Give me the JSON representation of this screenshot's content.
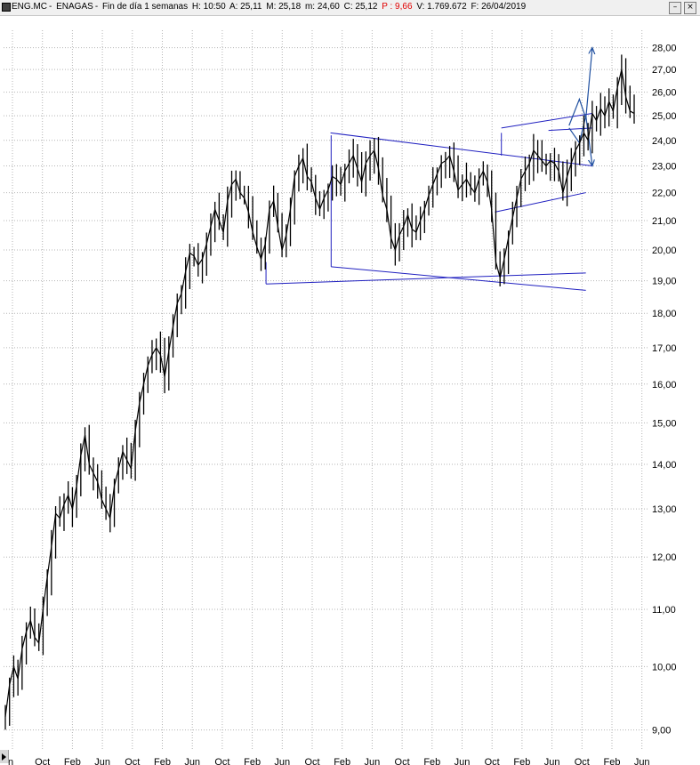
{
  "header": {
    "symbol": "ENG.MC",
    "name": "ENAGAS",
    "period": "Fin de día 1 semanas",
    "hour": "H: 10:50",
    "open": "A: 25,11",
    "high": "M: 25,18",
    "low": "m: 24,60",
    "close": "C: 25,12",
    "pct": "P : 9,66",
    "volume": "V: 1.769.672",
    "date": "F: 26/04/2019",
    "colors": {
      "pct": "#e00000"
    }
  },
  "window_buttons": {
    "minimize": "–",
    "close": "×"
  },
  "chart_data": {
    "type": "candlestick-line",
    "yscale": "log",
    "ylim": [
      8.85,
      28.4
    ],
    "yticks": [
      "28,00",
      "27,00",
      "26,00",
      "25,00",
      "24,00",
      "23,00",
      "22,00",
      "21,00",
      "20,00",
      "19,00",
      "18,00",
      "17,00",
      "16,00",
      "15,00",
      "14,00",
      "13,00",
      "12,00",
      "11,00",
      "10,00",
      "9,00"
    ],
    "ytick_values": [
      28,
      27,
      26,
      25,
      24,
      23,
      22,
      21,
      20,
      19,
      18,
      17,
      16,
      15,
      14,
      13,
      12,
      11,
      10,
      9
    ],
    "xticks": [
      "n",
      "Oct",
      "Feb",
      "Jun",
      "Oct",
      "Feb",
      "Jun",
      "Oct",
      "Feb",
      "Jun",
      "Oct",
      "Feb",
      "Jun",
      "Oct",
      "Feb",
      "Jun",
      "Oct",
      "Feb",
      "Jun",
      "Oct",
      "Feb",
      "Jun"
    ],
    "grid": true,
    "series": [
      {
        "values": [
          9.2,
          9.7,
          10.0,
          9.8,
          10.3,
          10.6,
          10.8,
          10.5,
          10.4,
          11.0,
          11.6,
          12.2,
          12.9,
          12.8,
          13.1,
          13.3,
          13.0,
          13.5,
          14.2,
          14.7,
          14.0,
          13.8,
          13.6,
          13.2,
          13.0,
          12.8,
          13.5,
          13.9,
          14.3,
          14.1,
          13.9,
          14.8,
          15.5,
          16.0,
          16.5,
          16.8,
          17.0,
          16.8,
          16.2,
          16.9,
          17.6,
          18.3,
          18.6,
          19.3,
          19.9,
          19.8,
          19.5,
          19.7,
          20.2,
          20.8,
          21.4,
          21.0,
          20.6,
          21.7,
          22.3,
          22.5,
          22.0,
          21.8,
          21.3,
          20.6,
          20.1,
          19.7,
          20.2,
          21.4,
          21.7,
          20.8,
          20.0,
          20.5,
          21.4,
          22.6,
          23.0,
          23.3,
          22.6,
          22.4,
          21.8,
          21.4,
          21.8,
          22.1,
          22.6,
          22.5,
          22.3,
          22.8,
          23.1,
          23.4,
          22.9,
          22.4,
          23.1,
          23.4,
          23.6,
          22.9,
          21.9,
          21.4,
          20.4,
          20.0,
          20.5,
          20.8,
          21.2,
          20.7,
          20.6,
          21.0,
          21.4,
          21.9,
          22.3,
          22.7,
          23.1,
          23.2,
          23.4,
          22.8,
          22.1,
          22.3,
          22.5,
          22.2,
          22.0,
          22.5,
          22.8,
          22.4,
          21.4,
          19.6,
          19.1,
          19.7,
          20.4,
          21.1,
          21.8,
          22.5,
          22.8,
          23.1,
          23.6,
          23.4,
          23.2,
          23.0,
          23.2,
          23.1,
          22.8,
          22.0,
          22.6,
          23.1,
          23.6,
          23.9,
          24.3,
          24.0,
          25.1,
          24.8,
          25.3,
          25.0,
          25.6,
          25.2,
          26.2,
          27.0,
          25.8,
          25.2,
          25.1
        ]
      }
    ],
    "annotations": [
      {
        "type": "trendline",
        "from": [
          0.507,
          24.3
        ],
        "to": [
          0.913,
          23.0
        ]
      },
      {
        "type": "trendline",
        "from": [
          0.508,
          19.45
        ],
        "to": [
          0.903,
          18.7
        ]
      },
      {
        "type": "trendline",
        "from": [
          0.407,
          18.9
        ],
        "to": [
          0.903,
          19.25
        ]
      },
      {
        "type": "trendline",
        "from": [
          0.508,
          24.2
        ],
        "to": [
          0.508,
          19.45
        ]
      },
      {
        "type": "trendline",
        "from": [
          0.407,
          18.9
        ],
        "to": [
          0.407,
          19.6
        ]
      },
      {
        "type": "trendline",
        "from": [
          0.772,
          24.5
        ],
        "to": [
          0.913,
          25.1
        ]
      },
      {
        "type": "trendline",
        "from": [
          0.772,
          24.3
        ],
        "to": [
          0.772,
          23.4
        ]
      },
      {
        "type": "trendline",
        "from": [
          0.762,
          21.3
        ],
        "to": [
          0.903,
          22.0
        ]
      },
      {
        "type": "trendline",
        "from": [
          0.845,
          24.4
        ],
        "to": [
          0.913,
          24.5
        ]
      },
      {
        "type": "arrow",
        "points": [
          [
            0.877,
            24.6
          ],
          [
            0.893,
            25.7
          ],
          [
            0.903,
            24.9
          ],
          [
            0.913,
            28.0
          ]
        ]
      },
      {
        "type": "arrow",
        "points": [
          [
            0.877,
            24.5
          ],
          [
            0.893,
            23.9
          ],
          [
            0.903,
            25.0
          ],
          [
            0.913,
            23.0
          ]
        ]
      }
    ]
  }
}
